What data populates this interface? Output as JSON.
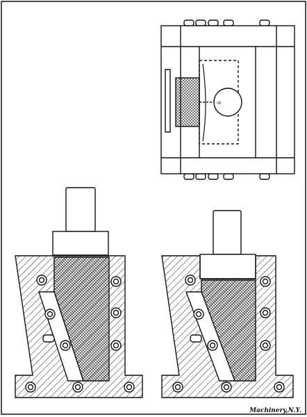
{
  "figure": {
    "caption": "Machinery,N.Y.",
    "views": [
      "top-plan-view",
      "section-left",
      "section-right"
    ]
  }
}
